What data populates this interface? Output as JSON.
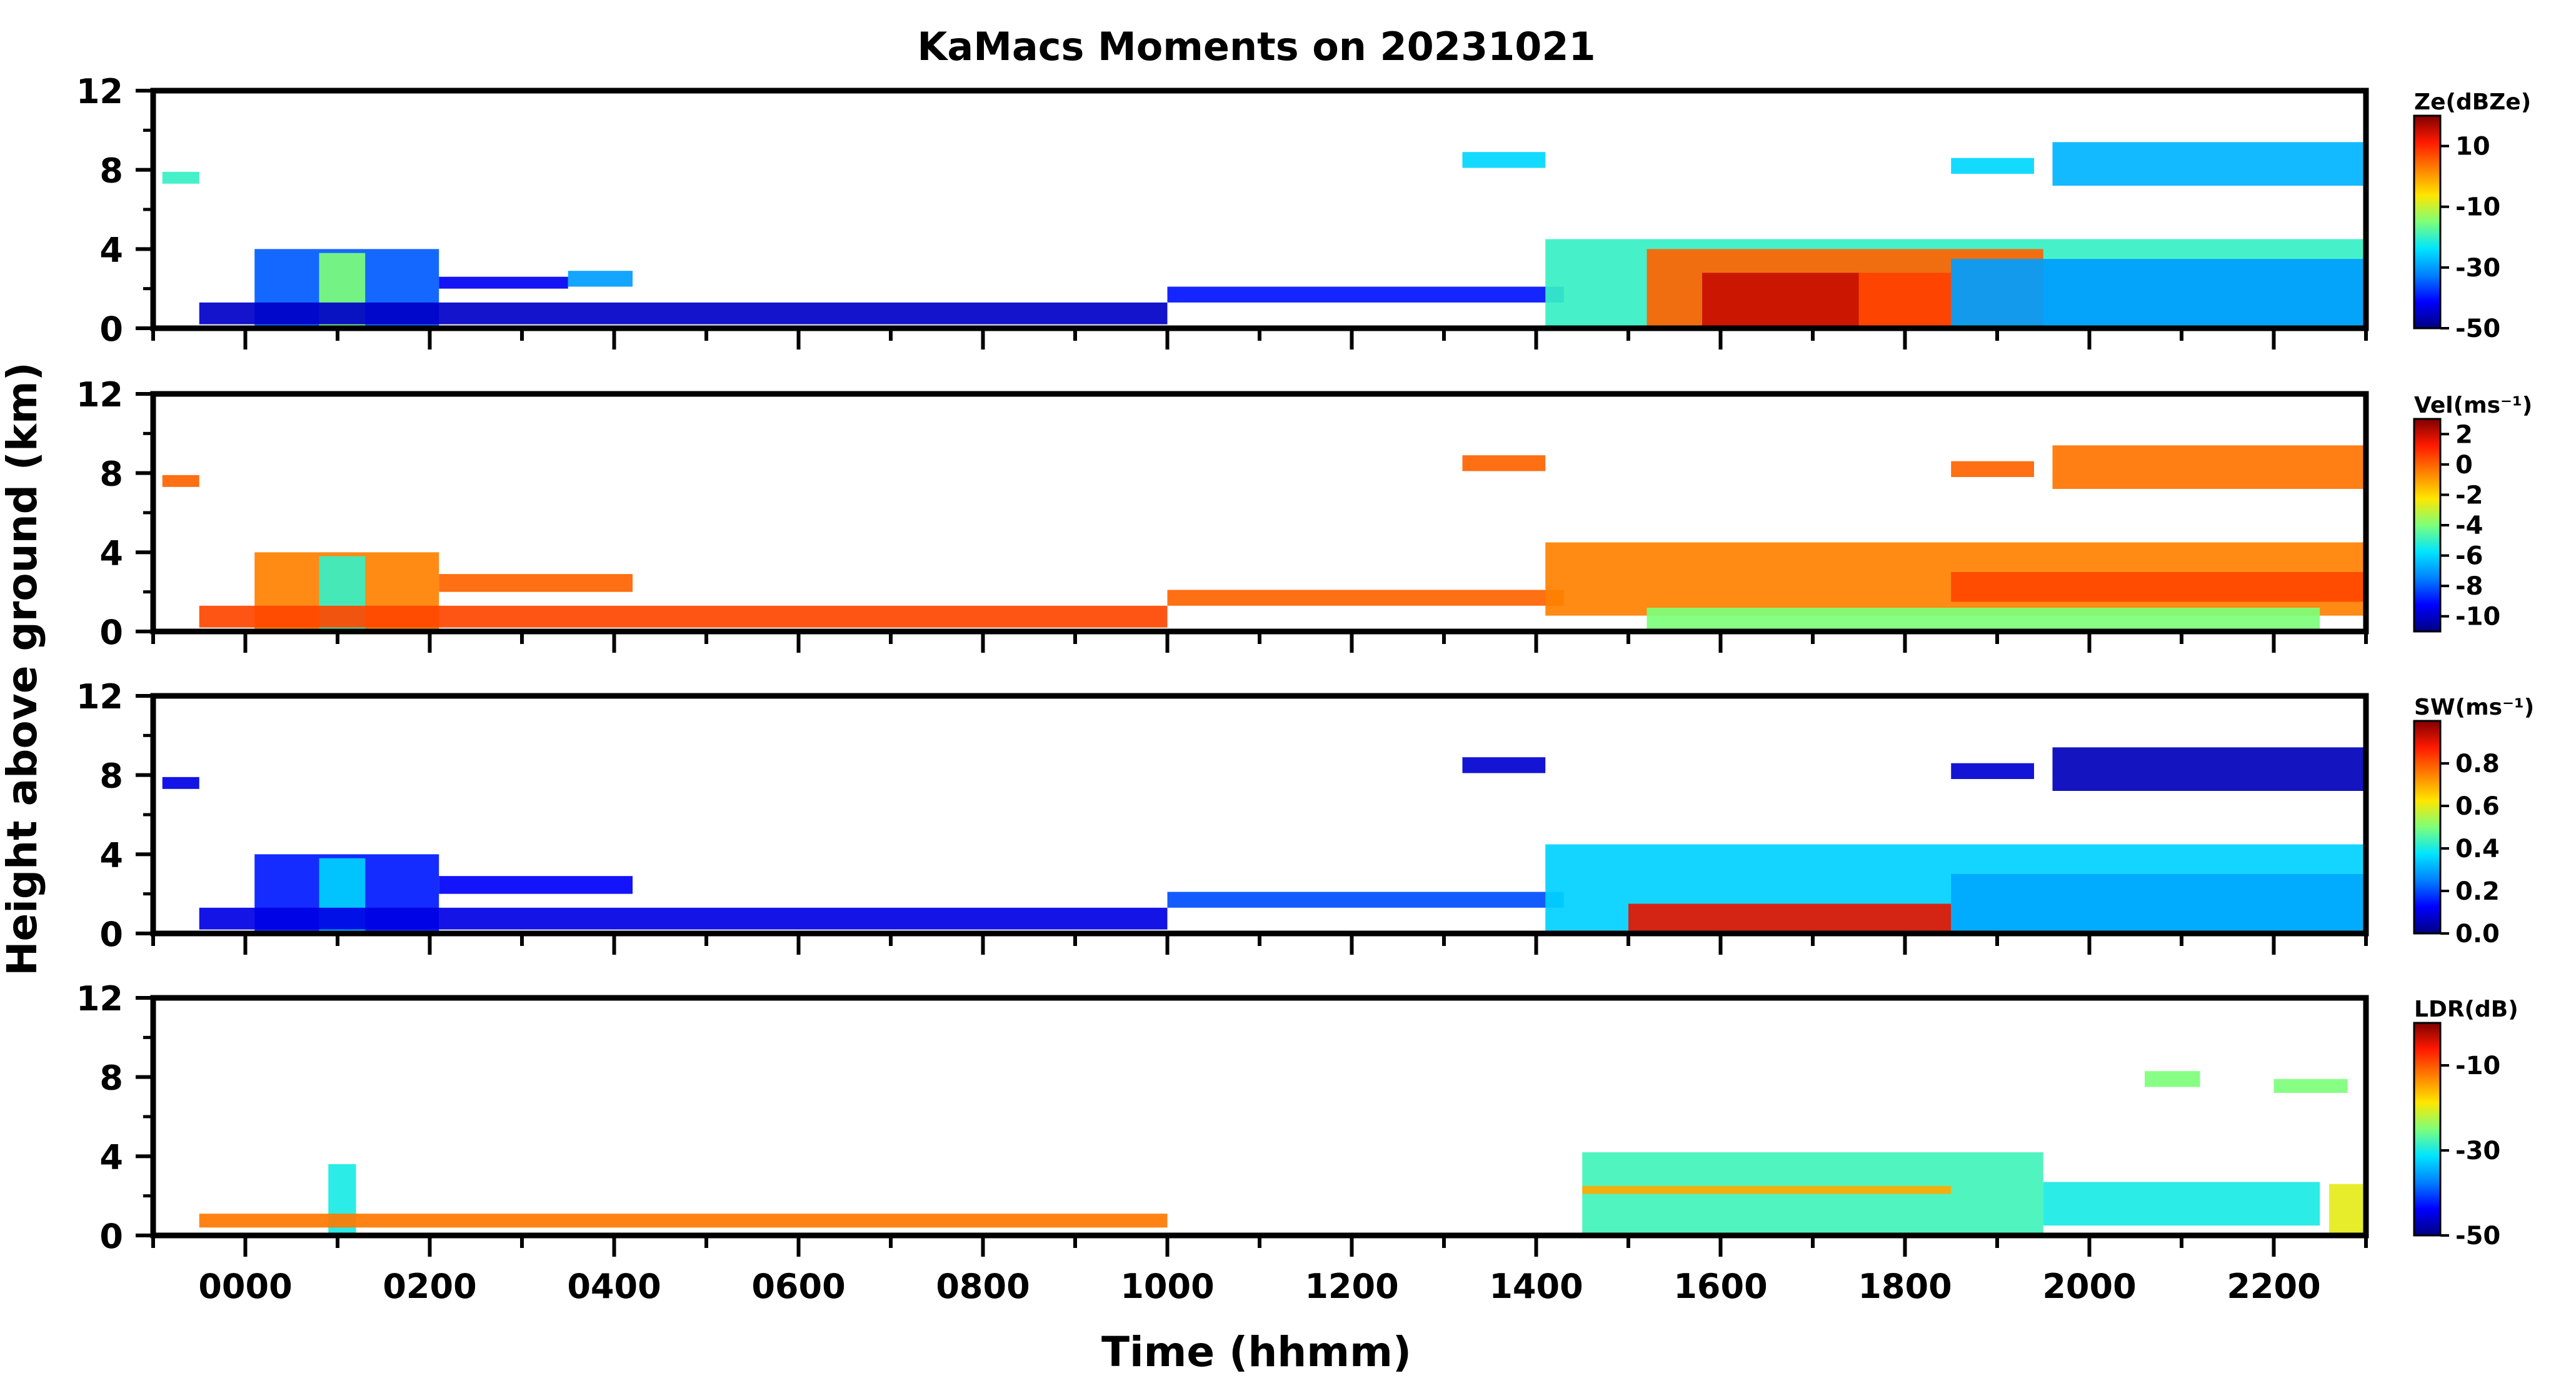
{
  "chart_data": {
    "type": "heatmap",
    "title": "KaMacs Moments on 20231021",
    "xlabel": "Time (hhmm)",
    "ylabel": "Height above ground (km)",
    "x_range_hours": [
      -1.0,
      23.0
    ],
    "x_ticks": [
      "0000",
      "0200",
      "0400",
      "0600",
      "0800",
      "1000",
      "1200",
      "1400",
      "1600",
      "1800",
      "2000",
      "2200"
    ],
    "x_tick_hours": [
      0,
      2,
      4,
      6,
      8,
      10,
      12,
      14,
      16,
      18,
      20,
      22
    ],
    "y_range_km": [
      0,
      12
    ],
    "y_ticks": [
      "0",
      "4",
      "8",
      "12"
    ],
    "y_tick_values": [
      0,
      4,
      8,
      12
    ],
    "colormap": [
      "#00007f",
      "#0000ff",
      "#0080ff",
      "#00e5ff",
      "#7dff7a",
      "#ffe600",
      "#ff8000",
      "#ff1a00",
      "#7f0000"
    ],
    "panels": [
      {
        "colorbar_label": "Ze(dBZe)",
        "colorbar_ticks": [
          "10",
          "-10",
          "-30",
          "-50"
        ],
        "colorbar_tick_values": [
          10,
          -10,
          -30,
          -50
        ],
        "colorbar_range": [
          -50,
          20
        ],
        "echoes": [
          {
            "t0": -0.9,
            "t1": -0.5,
            "h0": 7.3,
            "h1": 7.9,
            "value": -20
          },
          {
            "t0": 0.1,
            "t1": 2.1,
            "h0": 0,
            "h1": 4,
            "value": -35
          },
          {
            "t0": 0.8,
            "t1": 1.3,
            "h0": 0,
            "h1": 3.8,
            "value": -15
          },
          {
            "t0": 2.1,
            "t1": 3.5,
            "h0": 2,
            "h1": 2.6,
            "value": -42
          },
          {
            "t0": 3.5,
            "t1": 4.2,
            "h0": 2.1,
            "h1": 2.9,
            "value": -30
          },
          {
            "t0": -0.5,
            "t1": 10,
            "h0": 0.2,
            "h1": 1.3,
            "value": -45
          },
          {
            "t0": 10,
            "t1": 14.3,
            "h0": 1.3,
            "h1": 2.1,
            "value": -40
          },
          {
            "t0": 13.2,
            "t1": 14.1,
            "h0": 8.1,
            "h1": 8.9,
            "value": -25
          },
          {
            "t0": 14.1,
            "t1": 23,
            "h0": 0,
            "h1": 4.5,
            "value": -20
          },
          {
            "t0": 15.2,
            "t1": 19.5,
            "h0": 0,
            "h1": 4,
            "value": 5
          },
          {
            "t0": 15.8,
            "t1": 17.5,
            "h0": 0,
            "h1": 2.8,
            "value": 15
          },
          {
            "t0": 17.5,
            "t1": 18.5,
            "h0": 0,
            "h1": 2.8,
            "value": 8
          },
          {
            "t0": 18.5,
            "t1": 23,
            "h0": 0,
            "h1": 3.5,
            "value": -30
          },
          {
            "t0": 18.5,
            "t1": 19.4,
            "h0": 7.8,
            "h1": 8.6,
            "value": -25
          },
          {
            "t0": 19.6,
            "t1": 23,
            "h0": 7.2,
            "h1": 9.4,
            "value": -28
          }
        ]
      },
      {
        "colorbar_label": "Vel(ms⁻¹)",
        "colorbar_ticks": [
          "2",
          "0",
          "-2",
          "-4",
          "-6",
          "-8",
          "-10"
        ],
        "colorbar_tick_values": [
          2,
          0,
          -2,
          -4,
          -6,
          -8,
          -10
        ],
        "colorbar_range": [
          -11,
          3
        ],
        "echoes": [
          {
            "t0": -0.9,
            "t1": -0.5,
            "h0": 7.3,
            "h1": 7.9,
            "value": 0
          },
          {
            "t0": 0.1,
            "t1": 2.1,
            "h0": 0,
            "h1": 4,
            "value": -0.5
          },
          {
            "t0": 0.8,
            "t1": 1.3,
            "h0": 0,
            "h1": 3.8,
            "value": -5
          },
          {
            "t0": 2.1,
            "t1": 4.2,
            "h0": 2,
            "h1": 2.9,
            "value": 0
          },
          {
            "t0": -0.5,
            "t1": 10,
            "h0": 0.2,
            "h1": 1.3,
            "value": 0.5
          },
          {
            "t0": 10,
            "t1": 14.3,
            "h0": 1.3,
            "h1": 2.1,
            "value": 0
          },
          {
            "t0": 13.2,
            "t1": 14.1,
            "h0": 8.1,
            "h1": 8.9,
            "value": 0
          },
          {
            "t0": 14.1,
            "t1": 23,
            "h0": 0.8,
            "h1": 4.5,
            "value": -0.5
          },
          {
            "t0": 15.2,
            "t1": 22.5,
            "h0": 0,
            "h1": 1.2,
            "value": -4
          },
          {
            "t0": 18.5,
            "t1": 23,
            "h0": 1.5,
            "h1": 3,
            "value": 0.5
          },
          {
            "t0": 18.5,
            "t1": 19.4,
            "h0": 7.8,
            "h1": 8.6,
            "value": 0
          },
          {
            "t0": 19.6,
            "t1": 23,
            "h0": 7.2,
            "h1": 9.4,
            "value": -0.3
          }
        ]
      },
      {
        "colorbar_label": "SW(ms⁻¹)",
        "colorbar_ticks": [
          "0.8",
          "0.6",
          "0.4",
          "0.2",
          "0.0"
        ],
        "colorbar_tick_values": [
          0.8,
          0.6,
          0.4,
          0.2,
          0.0
        ],
        "colorbar_range": [
          0.0,
          1.0
        ],
        "echoes": [
          {
            "t0": -0.9,
            "t1": -0.5,
            "h0": 7.3,
            "h1": 7.9,
            "value": 0.1
          },
          {
            "t0": 0.1,
            "t1": 2.1,
            "h0": 0,
            "h1": 4,
            "value": 0.15
          },
          {
            "t0": 0.8,
            "t1": 1.3,
            "h0": 0,
            "h1": 3.8,
            "value": 0.35
          },
          {
            "t0": 2.1,
            "t1": 4.2,
            "h0": 2,
            "h1": 2.9,
            "value": 0.12
          },
          {
            "t0": -0.5,
            "t1": 10,
            "h0": 0.2,
            "h1": 1.3,
            "value": 0.1
          },
          {
            "t0": 10,
            "t1": 14.3,
            "h0": 1.3,
            "h1": 2.1,
            "value": 0.2
          },
          {
            "t0": 13.2,
            "t1": 14.1,
            "h0": 8.1,
            "h1": 8.9,
            "value": 0.08
          },
          {
            "t0": 14.1,
            "t1": 23,
            "h0": 0,
            "h1": 4.5,
            "value": 0.35
          },
          {
            "t0": 15.0,
            "t1": 18.5,
            "h0": 0,
            "h1": 1.5,
            "value": 0.9
          },
          {
            "t0": 18.5,
            "t1": 23,
            "h0": 0,
            "h1": 3,
            "value": 0.3
          },
          {
            "t0": 18.5,
            "t1": 19.4,
            "h0": 7.8,
            "h1": 8.6,
            "value": 0.08
          },
          {
            "t0": 19.6,
            "t1": 23,
            "h0": 7.2,
            "h1": 9.4,
            "value": 0.06
          }
        ]
      },
      {
        "colorbar_label": "LDR(dB)",
        "colorbar_ticks": [
          "-10",
          "-30",
          "-50"
        ],
        "colorbar_tick_values": [
          -10,
          -30,
          -50
        ],
        "colorbar_range": [
          -50,
          0
        ],
        "echoes": [
          {
            "t0": 0.9,
            "t1": 1.2,
            "h0": 0,
            "h1": 3.6,
            "value": -30
          },
          {
            "t0": -0.5,
            "t1": 10,
            "h0": 0.4,
            "h1": 1.1,
            "value": -12
          },
          {
            "t0": 14.5,
            "t1": 19.5,
            "h0": 0,
            "h1": 4.2,
            "value": -28
          },
          {
            "t0": 14.5,
            "t1": 18.5,
            "h0": 2.1,
            "h1": 2.5,
            "value": -15
          },
          {
            "t0": 19.5,
            "t1": 22.5,
            "h0": 0.5,
            "h1": 2.7,
            "value": -30
          },
          {
            "t0": 22.6,
            "t1": 23,
            "h0": 0,
            "h1": 2.6,
            "value": -20
          },
          {
            "t0": 20.6,
            "t1": 21.2,
            "h0": 7.5,
            "h1": 8.3,
            "value": -25
          },
          {
            "t0": 22.0,
            "t1": 22.8,
            "h0": 7.2,
            "h1": 7.9,
            "value": -25
          }
        ]
      }
    ]
  }
}
